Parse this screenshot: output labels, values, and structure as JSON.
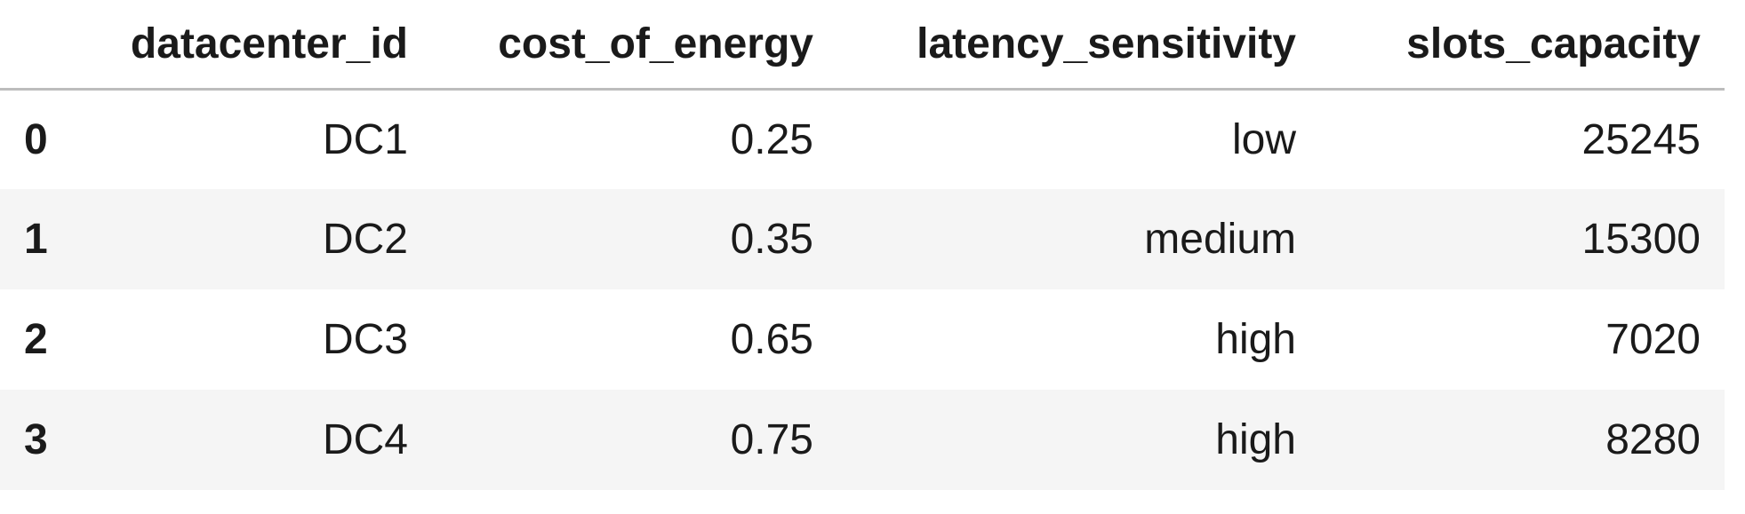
{
  "table": {
    "index_header": "",
    "columns": [
      "datacenter_id",
      "cost_of_energy",
      "latency_sensitivity",
      "slots_capacity"
    ],
    "rows": [
      {
        "index": "0",
        "cells": [
          "DC1",
          "0.25",
          "low",
          "25245"
        ]
      },
      {
        "index": "1",
        "cells": [
          "DC2",
          "0.35",
          "medium",
          "15300"
        ]
      },
      {
        "index": "2",
        "cells": [
          "DC3",
          "0.65",
          "high",
          "7020"
        ]
      },
      {
        "index": "3",
        "cells": [
          "DC4",
          "0.75",
          "high",
          "8280"
        ]
      }
    ]
  }
}
